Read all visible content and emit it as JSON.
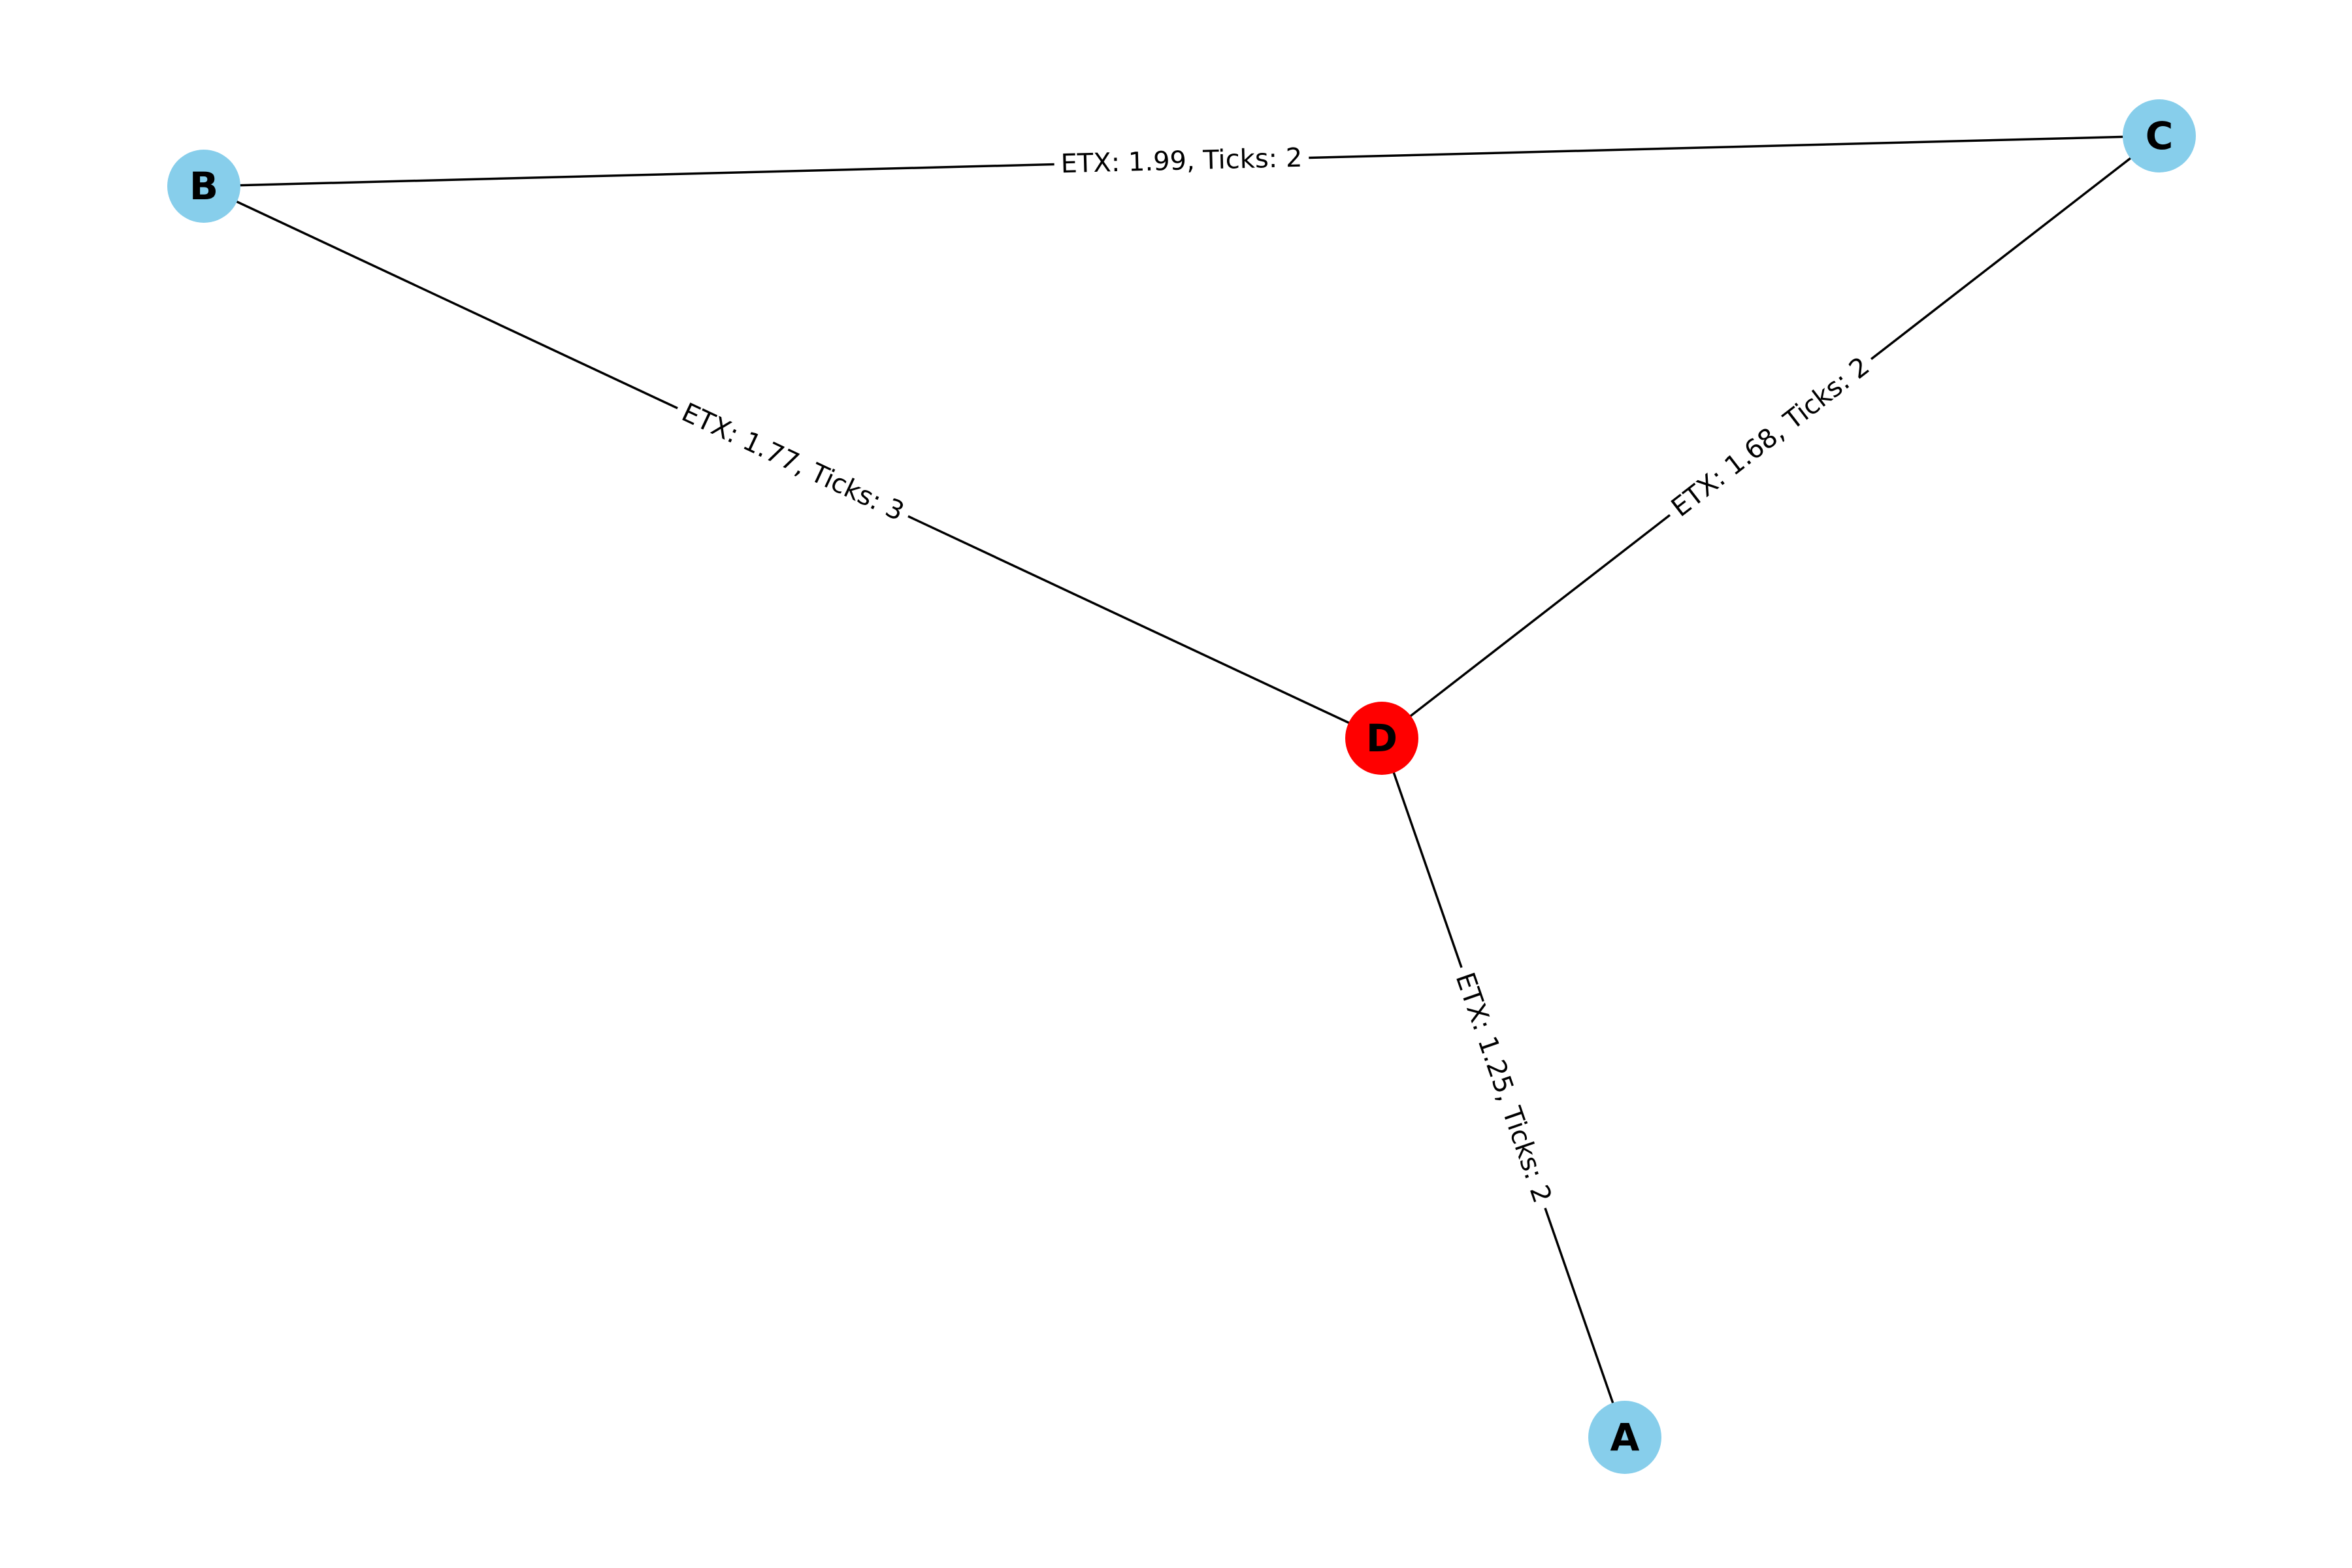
{
  "graph": {
    "highlight_color": "#ff0000",
    "node_color": "#87ceeb",
    "nodes": [
      {
        "id": "B",
        "label": "B",
        "highlighted": false
      },
      {
        "id": "C",
        "label": "C",
        "highlighted": false
      },
      {
        "id": "D",
        "label": "D",
        "highlighted": true
      },
      {
        "id": "A",
        "label": "A",
        "highlighted": false
      }
    ],
    "edges": [
      {
        "source": "B",
        "target": "C",
        "label": "ETX: 1.99, Ticks: 2",
        "etx": 1.99,
        "ticks": 2
      },
      {
        "source": "B",
        "target": "D",
        "label": "ETX: 1.77, Ticks: 3",
        "etx": 1.77,
        "ticks": 3
      },
      {
        "source": "C",
        "target": "D",
        "label": "ETX: 1.68, Ticks: 2",
        "etx": 1.68,
        "ticks": 2
      },
      {
        "source": "D",
        "target": "A",
        "label": "ETX: 1.25, Ticks: 2",
        "etx": 1.25,
        "ticks": 2
      }
    ]
  }
}
